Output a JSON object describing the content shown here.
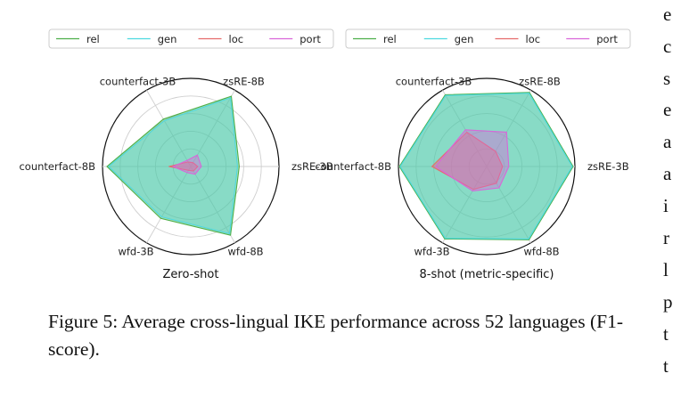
{
  "chart_data": [
    {
      "type": "radar",
      "title": "Zero-shot",
      "axes": [
        "zsRE-3B",
        "zsRE-8B",
        "counterfact-3B",
        "counterfact-8B",
        "wfd-3B",
        "wfd-8B"
      ],
      "rlim": [
        0,
        100
      ],
      "grid": true,
      "legend_position": "top",
      "series": [
        {
          "name": "rel",
          "color": "#4daf4a",
          "values": [
            55,
            92,
            62,
            95,
            68,
            90
          ]
        },
        {
          "name": "gen",
          "color": "#4dd9e0",
          "values": [
            53,
            90,
            60,
            93,
            66,
            88
          ]
        },
        {
          "name": "loc",
          "color": "#e56b6b",
          "values": [
            8,
            5,
            6,
            25,
            5,
            6
          ]
        },
        {
          "name": "port",
          "color": "#d966d9",
          "values": [
            12,
            15,
            8,
            20,
            8,
            10
          ]
        }
      ]
    },
    {
      "type": "radar",
      "title": "8-shot (metric-specific)",
      "axes": [
        "zsRE-3B",
        "zsRE-8B",
        "counterfact-3B",
        "counterfact-8B",
        "wfd-3B",
        "wfd-8B"
      ],
      "rlim": [
        0,
        100
      ],
      "grid": true,
      "legend_position": "top",
      "series": [
        {
          "name": "rel",
          "color": "#4daf4a",
          "values": [
            98,
            97,
            94,
            99,
            95,
            96
          ]
        },
        {
          "name": "gen",
          "color": "#4dd9e0",
          "values": [
            97,
            96,
            93,
            98,
            94,
            95
          ]
        },
        {
          "name": "loc",
          "color": "#e56b6b",
          "values": [
            18,
            20,
            45,
            62,
            30,
            22
          ]
        },
        {
          "name": "port",
          "color": "#d966d9",
          "values": [
            25,
            45,
            48,
            58,
            32,
            28
          ]
        }
      ]
    }
  ],
  "caption": "Figure 5: Average cross-lingual IKE performance across 52 languages (F1-score).",
  "caption_line2": "52 languages (F1-score).",
  "margin_text": [
    "e",
    "c",
    "s",
    "e",
    "a",
    "a",
    "i",
    "r",
    "l",
    "p",
    "t",
    "t"
  ]
}
